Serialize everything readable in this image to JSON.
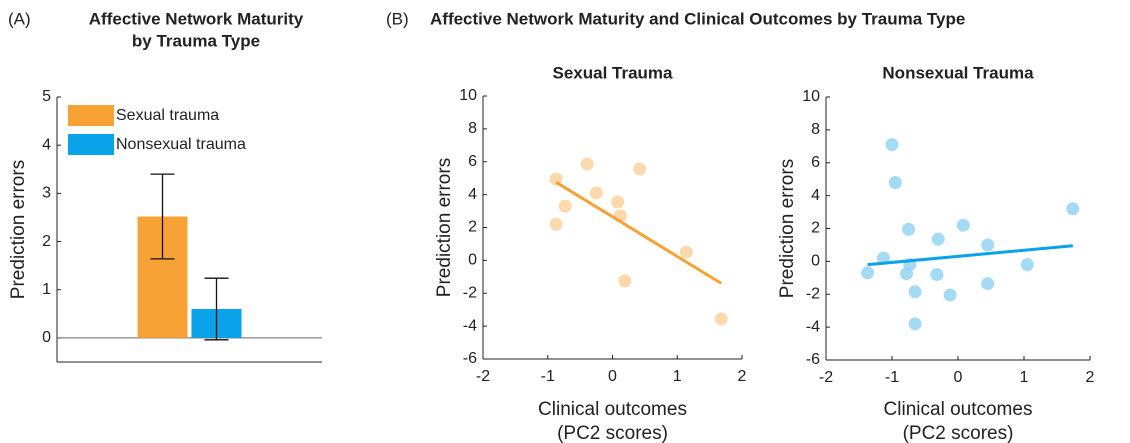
{
  "panel_b": {
    "label": "(B)",
    "title": "Affective Network Maturity and Clinical Outcomes by Trauma Type"
  },
  "chart_data": [
    {
      "type": "bar",
      "panel_label": "(A)",
      "title": [
        "Affective Network Maturity",
        "by Trauma Type"
      ],
      "ylabel": "Prediction errors",
      "categories": [
        null
      ],
      "series": [
        {
          "name": "Sexual trauma",
          "color": "#f7a234",
          "values": [
            2.52
          ],
          "errors": [
            0.88
          ]
        },
        {
          "name": "Nonsexual trauma",
          "color": "#0aa2e8",
          "values": [
            0.6
          ],
          "errors": [
            0.64
          ]
        }
      ],
      "ylim": [
        -0.5,
        5
      ],
      "yticks": [
        0,
        1,
        2,
        3,
        4,
        5
      ],
      "legend": "upper left"
    },
    {
      "type": "scatter",
      "title": "Sexual Trauma",
      "xlabel": [
        "Clinical outcomes",
        "(PC2 scores)"
      ],
      "ylabel": "Prediction errors",
      "x": [
        -0.87,
        -0.87,
        -0.73,
        -0.39,
        -0.25,
        0.08,
        0.12,
        0.19,
        0.42,
        1.14,
        1.68
      ],
      "y": [
        4.95,
        2.2,
        3.3,
        5.86,
        4.1,
        3.55,
        2.7,
        -1.25,
        5.56,
        0.5,
        -3.56
      ],
      "color": "#fcd29f",
      "fit": {
        "x": [
          -0.87,
          1.68
        ],
        "y": [
          4.75,
          -1.4
        ],
        "color": "#f7a234"
      },
      "xlim": [
        -2,
        2
      ],
      "xticks": [
        -2,
        -1,
        0,
        1,
        2
      ],
      "ylim": [
        -6,
        10
      ],
      "yticks": [
        -6,
        -4,
        -2,
        0,
        2,
        4,
        6,
        8,
        10
      ]
    },
    {
      "type": "scatter",
      "title": "Nonsexual Trauma",
      "xlabel": [
        "Clinical outcomes",
        "(PC2 scores)"
      ],
      "ylabel": "Prediction errors",
      "x": [
        -1.37,
        -1.13,
        -1.0,
        -0.95,
        -0.75,
        -0.78,
        -0.73,
        -0.65,
        -0.65,
        -0.3,
        -0.32,
        -0.12,
        0.08,
        0.45,
        0.45,
        1.05,
        1.74
      ],
      "y": [
        -0.7,
        0.2,
        7.1,
        4.8,
        1.95,
        -0.75,
        -0.2,
        -1.85,
        -3.8,
        1.35,
        -0.8,
        -2.05,
        2.2,
        1.0,
        -1.35,
        -0.2,
        3.2
      ],
      "color": "#94d3f2",
      "fit": {
        "x": [
          -1.37,
          1.74
        ],
        "y": [
          -0.2,
          0.95
        ],
        "color": "#0aa2e8"
      },
      "xlim": [
        -2,
        2
      ],
      "xticks": [
        -2,
        -1,
        0,
        1,
        2
      ],
      "ylim": [
        -6,
        10
      ],
      "yticks": [
        -6,
        -4,
        -2,
        0,
        2,
        4,
        6,
        8,
        10
      ]
    }
  ]
}
